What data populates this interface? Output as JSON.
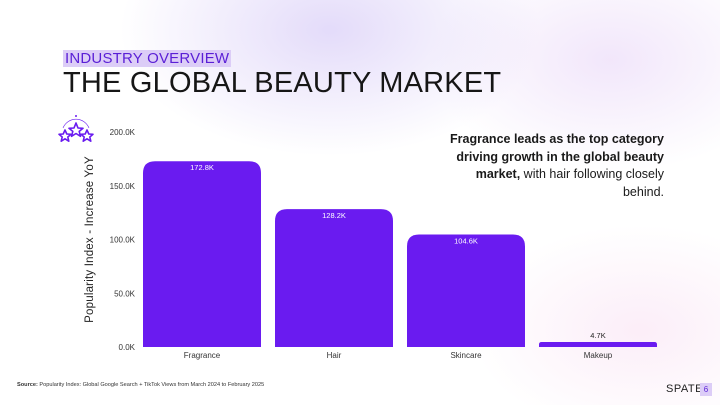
{
  "header": {
    "eyebrow": "INDUSTRY OVERVIEW",
    "title": "THE GLOBAL BEAUTY MARKET"
  },
  "badge": {
    "icon": "stars-award-badge-icon"
  },
  "callout": {
    "bold_text": "Fragrance leads as the top category driving growth in the global beauty market,",
    "regular_text": " with hair following closely behind."
  },
  "footer": {
    "source_label": "Source:",
    "source_text": " Popularity Index: Global Google Search + TikTok Views from March 2024 to February 2025",
    "brand": "SPATE",
    "page_number": "6"
  },
  "colors": {
    "accent": "#6a1bf0",
    "accent_text": "#5a1fd6",
    "highlight": "#dccdf7"
  },
  "chart_data": {
    "type": "bar",
    "categories": [
      "Fragrance",
      "Hair",
      "Skincare",
      "Makeup"
    ],
    "values": [
      172.8,
      128.2,
      104.6,
      4.7
    ],
    "value_labels": [
      "172.8K",
      "128.2K",
      "104.6K",
      "4.7K"
    ],
    "ylabel": "Popularity Index - Increase YoY",
    "ylim": [
      0,
      200
    ],
    "y_ticks": [
      0,
      50,
      100,
      150,
      200
    ],
    "y_tick_labels": [
      "0.0K",
      "50.0K",
      "100.0K",
      "150.0K",
      "200.0K"
    ],
    "grid": false,
    "legend": "none"
  }
}
